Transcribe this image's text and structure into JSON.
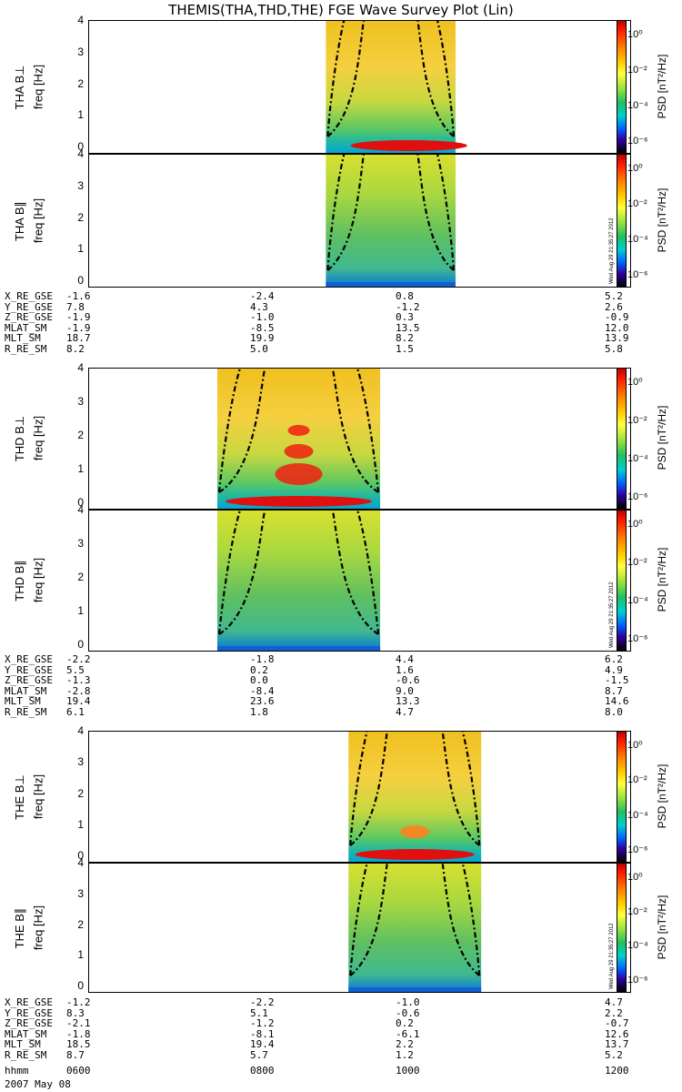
{
  "title": "THEMIS(THA,THD,THE) FGE Wave Survey Plot (Lin)",
  "colorbar": {
    "label": "PSD [nT²/Hz]",
    "ticks": [
      "10⁰",
      "10⁻²",
      "10⁻⁴",
      "10⁻⁶"
    ],
    "timestamp": "Wed Aug 29 21:35:27 2012"
  },
  "freq_label": "freq [Hz]",
  "freq_ticks": [
    "0",
    "1",
    "2",
    "3",
    "4"
  ],
  "probes": [
    {
      "name": "THA",
      "panels": [
        {
          "label": "THA B⊥"
        },
        {
          "label": "THA B∥"
        }
      ],
      "ephemeris": [
        {
          "name": "X_RE_GSE",
          "values": [
            "-1.6",
            "-2.4",
            "0.8",
            "5.2"
          ]
        },
        {
          "name": "Y_RE_GSE",
          "values": [
            "7.8",
            "4.3",
            "-1.2",
            "2.6"
          ]
        },
        {
          "name": "Z_RE_GSE",
          "values": [
            "-1.9",
            "-1.0",
            "0.3",
            "-0.9"
          ]
        },
        {
          "name": "MLAT_SM",
          "values": [
            "-1.9",
            "-8.5",
            "13.5",
            "12.0"
          ]
        },
        {
          "name": "MLT_SM",
          "values": [
            "18.7",
            "19.9",
            "8.2",
            "13.9"
          ]
        },
        {
          "name": "R_RE_SM",
          "values": [
            "8.2",
            "5.0",
            "1.5",
            "5.8"
          ]
        }
      ]
    },
    {
      "name": "THD",
      "panels": [
        {
          "label": "THD B⊥"
        },
        {
          "label": "THD B∥"
        }
      ],
      "ephemeris": [
        {
          "name": "X_RE_GSE",
          "values": [
            "-2.2",
            "-1.8",
            "4.4",
            "6.2"
          ]
        },
        {
          "name": "Y_RE_GSE",
          "values": [
            "5.5",
            "0.2",
            "1.6",
            "4.9"
          ]
        },
        {
          "name": "Z_RE_GSE",
          "values": [
            "-1.3",
            "0.0",
            "-0.6",
            "-1.5"
          ]
        },
        {
          "name": "MLAT_SM",
          "values": [
            "-2.8",
            "-8.4",
            "9.0",
            "8.7"
          ]
        },
        {
          "name": "MLT_SM",
          "values": [
            "19.4",
            "23.6",
            "13.3",
            "14.6"
          ]
        },
        {
          "name": "R_RE_SM",
          "values": [
            "6.1",
            "1.8",
            "4.7",
            "8.0"
          ]
        }
      ]
    },
    {
      "name": "THE",
      "panels": [
        {
          "label": "THE B⊥"
        },
        {
          "label": "THE B∥"
        }
      ],
      "ephemeris": [
        {
          "name": "X_RE_GSE",
          "values": [
            "-1.2",
            "-2.2",
            "-1.0",
            "4.7"
          ]
        },
        {
          "name": "Y_RE_GSE",
          "values": [
            "8.3",
            "5.1",
            "-0.6",
            "2.2"
          ]
        },
        {
          "name": "Z_RE_GSE",
          "values": [
            "-2.1",
            "-1.2",
            "0.2",
            "-0.7"
          ]
        },
        {
          "name": "MLAT_SM",
          "values": [
            "-1.8",
            "-8.1",
            "-6.1",
            "12.6"
          ]
        },
        {
          "name": "MLT_SM",
          "values": [
            "18.5",
            "19.4",
            "2.2",
            "13.7"
          ]
        },
        {
          "name": "R_RE_SM",
          "values": [
            "8.7",
            "5.7",
            "1.2",
            "5.2"
          ]
        }
      ]
    }
  ],
  "time_axis": {
    "name": "hhmm",
    "values": [
      "0600",
      "0800",
      "1000",
      "1200"
    ],
    "date": "2007 May 08"
  },
  "chart_data": {
    "type": "heatmap",
    "title": "THEMIS(THA,THD,THE) FGE Wave Survey Plot (Lin)",
    "ylabel": "freq [Hz]",
    "ylim": [
      0,
      4
    ],
    "xlabel": "hhmm",
    "x_ticks": [
      "0600",
      "0800",
      "1000",
      "1200"
    ],
    "colorscale": {
      "label": "PSD [nT²/Hz]",
      "range_log10": [
        -7,
        1
      ]
    },
    "series": [
      {
        "name": "THA B⊥",
        "data_start": "0837",
        "data_end": "1003"
      },
      {
        "name": "THA B∥",
        "data_start": "0837",
        "data_end": "1003"
      },
      {
        "name": "THD B⊥",
        "data_start": "0725",
        "data_end": "0913"
      },
      {
        "name": "THD B∥",
        "data_start": "0725",
        "data_end": "0913"
      },
      {
        "name": "THE B⊥",
        "data_start": "0852",
        "data_end": "1020"
      },
      {
        "name": "THE B∥",
        "data_start": "0852",
        "data_end": "1020"
      }
    ]
  }
}
